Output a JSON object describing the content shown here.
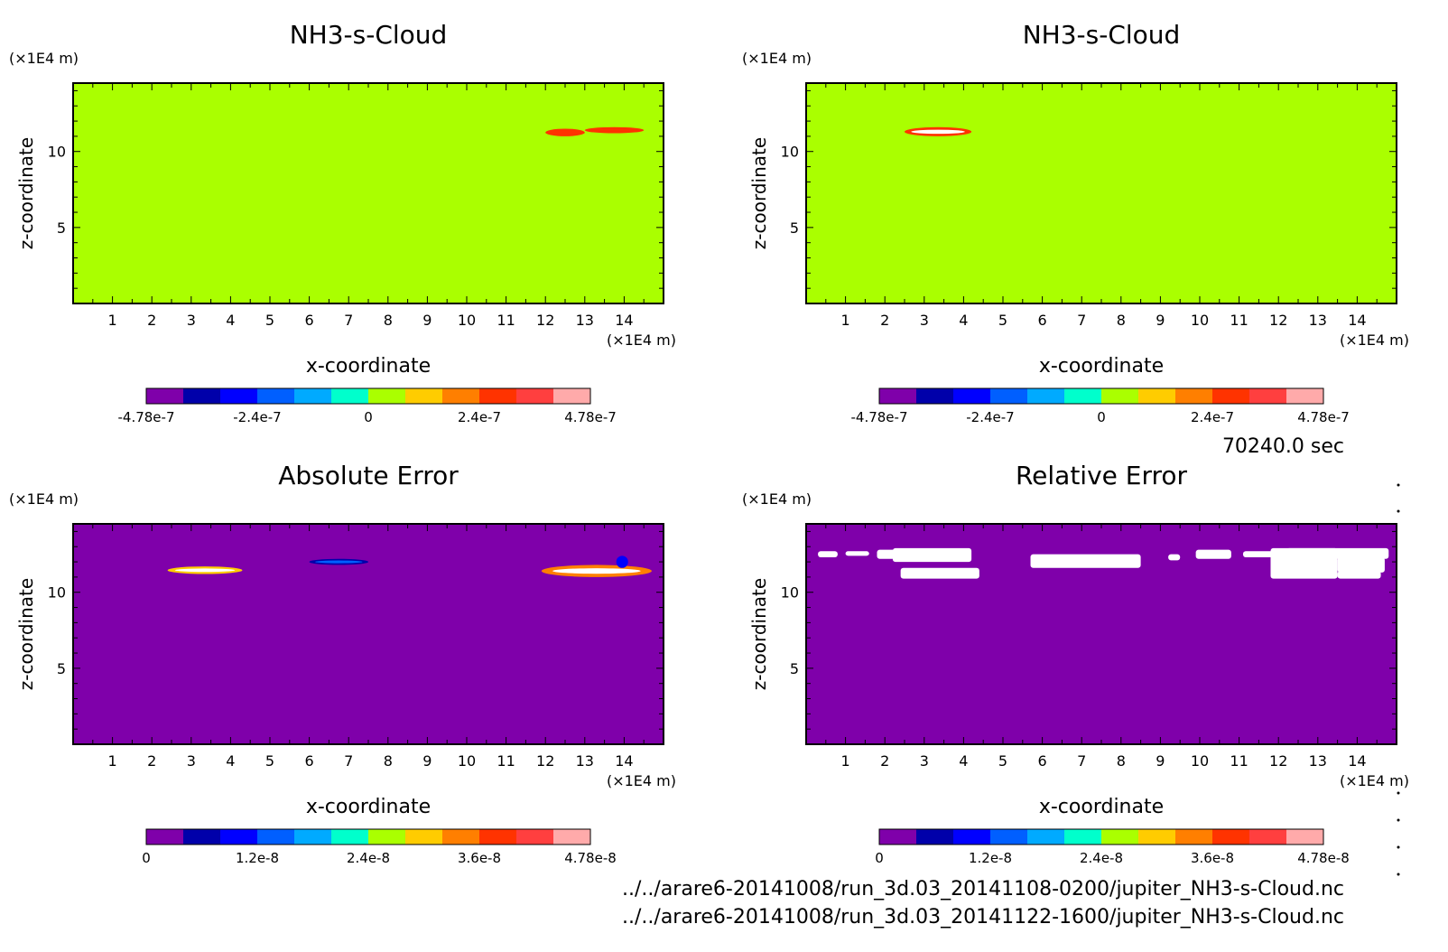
{
  "timestamp": "70240.0 sec",
  "files": [
    "../../arare6-20141008/run_3d.03_20141108-0200/jupiter_NH3-s-Cloud.nc",
    "../../arare6-20141008/run_3d.03_20141122-1600/jupiter_NH3-s-Cloud.nc"
  ],
  "colorbar_colors": [
    "#7f00aa",
    "#0000aa",
    "#0000ff",
    "#005fff",
    "#00aaff",
    "#00ffcc",
    "#aaff00",
    "#ffcc00",
    "#ff7f00",
    "#ff3300",
    "#ff3f3f",
    "#ffaaaa"
  ],
  "chart_data": [
    {
      "type": "heatmap",
      "title": "NH3-s-Cloud",
      "xlabel": "x-coordinate",
      "ylabel": "z-coordinate",
      "x_unit": "(×1E4 m)",
      "y_unit": "(×1E4 m)",
      "xlim": [
        0,
        15
      ],
      "ylim": [
        0,
        14.5
      ],
      "x_ticks": [
        "1",
        "2",
        "3",
        "4",
        "5",
        "6",
        "7",
        "8",
        "9",
        "10",
        "11",
        "12",
        "13",
        "14"
      ],
      "y_ticks": [
        "5",
        "10"
      ],
      "colorbar_ticks": [
        "-4.78e-7",
        "-2.4e-7",
        "0",
        "2.4e-7",
        "4.78e-7"
      ],
      "background": "#aaff00",
      "features": [
        {
          "x": [
            12.0,
            13.0
          ],
          "z": [
            11.0,
            11.5
          ],
          "color": "#ff3300"
        },
        {
          "x": [
            13.0,
            14.5
          ],
          "z": [
            11.2,
            11.6
          ],
          "color": "#ff3300"
        }
      ]
    },
    {
      "type": "heatmap",
      "title": "NH3-s-Cloud",
      "xlabel": "x-coordinate",
      "ylabel": "z-coordinate",
      "x_unit": "(×1E4 m)",
      "y_unit": "(×1E4 m)",
      "xlim": [
        0,
        15
      ],
      "ylim": [
        0,
        14.5
      ],
      "x_ticks": [
        "1",
        "2",
        "3",
        "4",
        "5",
        "6",
        "7",
        "8",
        "9",
        "10",
        "11",
        "12",
        "13",
        "14"
      ],
      "y_ticks": [
        "5",
        "10"
      ],
      "colorbar_ticks": [
        "-4.78e-7",
        "-2.4e-7",
        "0",
        "2.4e-7",
        "4.78e-7"
      ],
      "background": "#aaff00",
      "features": [
        {
          "x": [
            2.5,
            4.2
          ],
          "z": [
            11.0,
            11.6
          ],
          "color": "#ff3300",
          "core": "#ffffff"
        }
      ]
    },
    {
      "type": "heatmap",
      "title": "Absolute Error",
      "xlabel": "x-coordinate",
      "ylabel": "z-coordinate",
      "x_unit": "(×1E4 m)",
      "y_unit": "(×1E4 m)",
      "xlim": [
        0,
        15
      ],
      "ylim": [
        0,
        14.5
      ],
      "x_ticks": [
        "1",
        "2",
        "3",
        "4",
        "5",
        "6",
        "7",
        "8",
        "9",
        "10",
        "11",
        "12",
        "13",
        "14"
      ],
      "y_ticks": [
        "5",
        "10"
      ],
      "colorbar_ticks": [
        "0",
        "1.2e-8",
        "2.4e-8",
        "3.6e-8",
        "4.78e-8"
      ],
      "background": "#7f00aa",
      "features": [
        {
          "x": [
            2.4,
            4.3
          ],
          "z": [
            11.2,
            11.7
          ],
          "color": "#ffcc00",
          "core": "#ffffff"
        },
        {
          "x": [
            6.0,
            7.5
          ],
          "z": [
            11.8,
            12.2
          ],
          "color": "#0000aa",
          "core": "#005fff"
        },
        {
          "x": [
            11.9,
            14.7
          ],
          "z": [
            11.0,
            11.8
          ],
          "color": "#ff7f00",
          "core": "#ffffff"
        },
        {
          "x": [
            13.8,
            14.1
          ],
          "z": [
            11.6,
            12.4
          ],
          "color": "#0000ff"
        }
      ]
    },
    {
      "type": "heatmap",
      "title": "Relative Error",
      "xlabel": "x-coordinate",
      "ylabel": "z-coordinate",
      "x_unit": "(×1E4 m)",
      "y_unit": "(×1E4 m)",
      "xlim": [
        0,
        15
      ],
      "ylim": [
        0,
        14.5
      ],
      "x_ticks": [
        "1",
        "2",
        "3",
        "4",
        "5",
        "6",
        "7",
        "8",
        "9",
        "10",
        "11",
        "12",
        "13",
        "14"
      ],
      "y_ticks": [
        "5",
        "10"
      ],
      "colorbar_ticks": [
        "0",
        "1.2e-8",
        "2.4e-8",
        "3.6e-8",
        "4.78e-8"
      ],
      "background": "#7f00aa",
      "features": [
        {
          "x": [
            0.3,
            0.8
          ],
          "z": [
            12.3,
            12.7
          ],
          "color": "#ffffff"
        },
        {
          "x": [
            1.0,
            1.6
          ],
          "z": [
            12.4,
            12.7
          ],
          "color": "#ffffff"
        },
        {
          "x": [
            1.8,
            3.0
          ],
          "z": [
            12.2,
            12.8
          ],
          "color": "#ffffff"
        },
        {
          "x": [
            2.2,
            4.2
          ],
          "z": [
            12.0,
            12.9
          ],
          "color": "#ffffff"
        },
        {
          "x": [
            2.4,
            4.4
          ],
          "z": [
            10.9,
            11.6
          ],
          "color": "#ffffff"
        },
        {
          "x": [
            5.7,
            8.5
          ],
          "z": [
            11.6,
            12.5
          ],
          "color": "#ffffff"
        },
        {
          "x": [
            9.2,
            9.5
          ],
          "z": [
            12.1,
            12.5
          ],
          "color": "#ffffff"
        },
        {
          "x": [
            9.9,
            10.8
          ],
          "z": [
            12.2,
            12.8
          ],
          "color": "#ffffff"
        },
        {
          "x": [
            11.1,
            12.1
          ],
          "z": [
            12.3,
            12.7
          ],
          "color": "#ffffff"
        },
        {
          "x": [
            11.8,
            13.5
          ],
          "z": [
            10.9,
            12.9
          ],
          "color": "#ffffff"
        },
        {
          "x": [
            12.2,
            14.8
          ],
          "z": [
            12.2,
            12.9
          ],
          "color": "#ffffff"
        },
        {
          "x": [
            13.5,
            14.7
          ],
          "z": [
            11.3,
            12.3
          ],
          "color": "#ffffff"
        },
        {
          "x": [
            13.5,
            14.6
          ],
          "z": [
            10.9,
            11.4
          ],
          "color": "#ffffff"
        }
      ]
    }
  ]
}
